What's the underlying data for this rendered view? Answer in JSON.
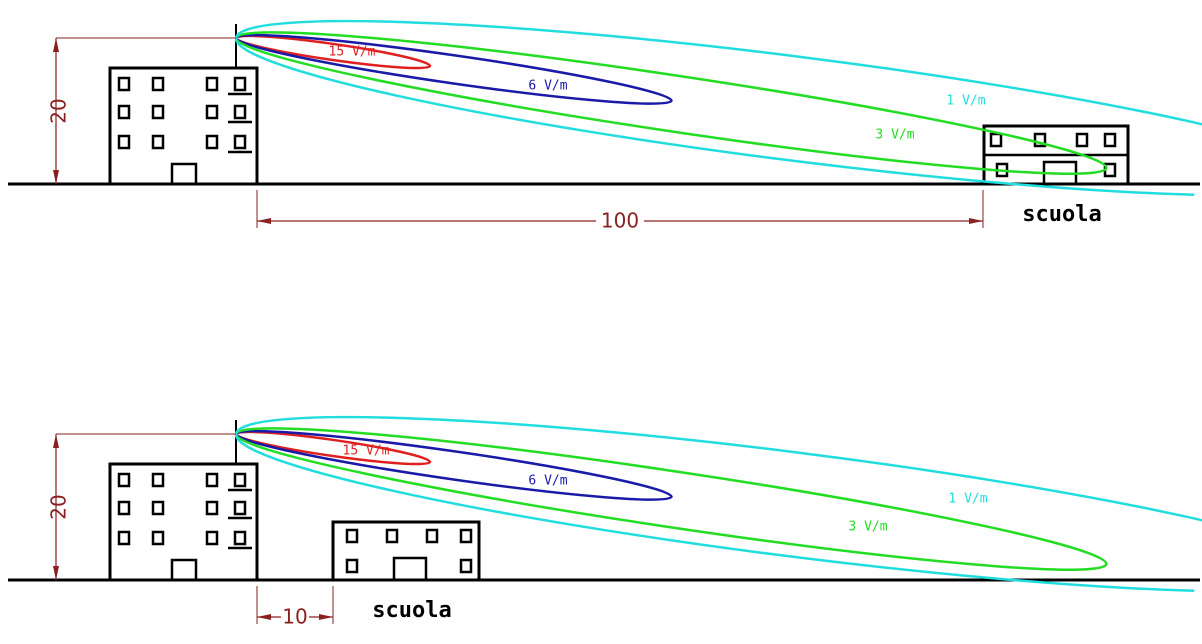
{
  "panels": [
    {
      "height_label": "20",
      "distance_label": "100",
      "building_label": "scuola",
      "lobes": [
        {
          "label": "15 V/m"
        },
        {
          "label": "6 V/m"
        },
        {
          "label": "3 V/m"
        },
        {
          "label": "1 V/m"
        }
      ]
    },
    {
      "height_label": "20",
      "distance_label": "10",
      "building_label": "scuola",
      "lobes": [
        {
          "label": "15 V/m"
        },
        {
          "label": "6 V/m"
        },
        {
          "label": "3 V/m"
        },
        {
          "label": "1 V/m"
        }
      ]
    }
  ]
}
